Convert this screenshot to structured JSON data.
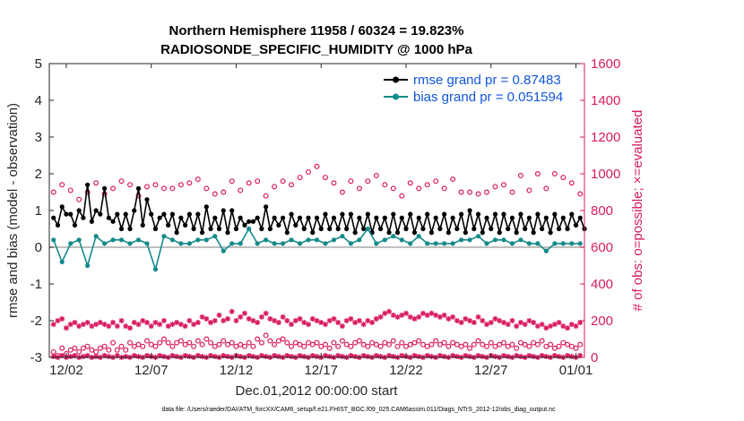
{
  "chart_data": {
    "type": "line",
    "title": "Northern Hemisphere 11958 / 60324 = 19.823%",
    "subtitle": "RADIOSONDE_SPECIFIC_HUMIDITY @ 1000 hPa",
    "xlabel": "Dec.01,2012 00:00:00 start",
    "ylabel": "rmse and bias (model - observation)",
    "y2label": "# of obs: o=possible; ×=evaluated",
    "footnote": "data file: /Users/raeder/DAI/ATM_forcXX/CAM6_setup/f.e21.FHIST_BGC.f09_025.CAM6assim.011/Diags_NTrS_2012-12/obs_diag_output.nc",
    "xlim": [
      0,
      31.5
    ],
    "ylim": [
      -3,
      5
    ],
    "y2lim": [
      0,
      1600
    ],
    "x_ticks": [
      {
        "x": 1,
        "label": "12/02"
      },
      {
        "x": 6,
        "label": "12/07"
      },
      {
        "x": 11,
        "label": "12/12"
      },
      {
        "x": 16,
        "label": "12/17"
      },
      {
        "x": 21,
        "label": "12/22"
      },
      {
        "x": 26,
        "label": "12/27"
      },
      {
        "x": 31,
        "label": "01/01"
      }
    ],
    "y_ticks": [
      -3,
      -2,
      -1,
      0,
      1,
      2,
      3,
      4,
      5
    ],
    "y2_ticks": [
      0,
      200,
      400,
      600,
      800,
      1000,
      1200,
      1400,
      1600
    ],
    "grid": false,
    "legend_position": "top-right",
    "colors": {
      "rmse": "#000000",
      "bias": "#148a8a",
      "obs": "#d81b60",
      "zero_line": "#aaaaaa"
    },
    "series": [
      {
        "name": "rmse grand pr = 0.87483",
        "axis": "left",
        "color": "#000000",
        "start": 0.25,
        "step": 0.25,
        "values": [
          0.8,
          0.6,
          1.1,
          0.9,
          0.9,
          0.6,
          1.0,
          0.8,
          1.7,
          0.7,
          1.0,
          0.9,
          1.6,
          0.8,
          0.7,
          0.9,
          0.5,
          0.9,
          0.5,
          1.0,
          1.6,
          0.6,
          1.3,
          0.9,
          0.5,
          0.8,
          0.9,
          0.6,
          0.9,
          0.4,
          0.8,
          0.6,
          0.9,
          0.5,
          0.9,
          0.4,
          1.1,
          0.5,
          0.8,
          0.5,
          1.0,
          0.4,
          1.0,
          0.5,
          0.8,
          0.6,
          0.7,
          0.7,
          0.8,
          0.5,
          1.1,
          0.5,
          0.8,
          0.6,
          0.8,
          0.4,
          0.9,
          0.6,
          0.8,
          0.5,
          0.8,
          0.4,
          0.8,
          0.5,
          0.9,
          0.5,
          0.8,
          0.5,
          0.9,
          0.5,
          0.9,
          0.4,
          0.8,
          0.5,
          0.9,
          0.4,
          0.8,
          0.5,
          0.8,
          0.4,
          0.9,
          0.4,
          0.8,
          0.5,
          0.9,
          0.4,
          0.8,
          0.5,
          0.9,
          0.4,
          0.8,
          0.5,
          0.9,
          0.4,
          0.8,
          0.5,
          0.9,
          0.4,
          1.0,
          0.5,
          0.9,
          0.4,
          0.8,
          0.5,
          0.9,
          0.4,
          0.9,
          0.5,
          0.8,
          0.4,
          0.9,
          0.5,
          0.8,
          0.4,
          0.9,
          0.5,
          0.8,
          0.4,
          0.9,
          0.5,
          0.8,
          0.5,
          0.9,
          0.6,
          0.8,
          0.5,
          0.7,
          0.6,
          0.7,
          0.6,
          0.8,
          0.5,
          0.9,
          0.4,
          1.1,
          0.5,
          0.8,
          0.4,
          0.9,
          0.5,
          0.8,
          0.4,
          0.7,
          0.5,
          0.8,
          0.5,
          0.9,
          0.5,
          0.8,
          0.5,
          0.9,
          0.4,
          0.8,
          0.5,
          0.8,
          0.4,
          0.9,
          0.5,
          0.7,
          0.4,
          0.8,
          0.5,
          0.8,
          0.4,
          0.9,
          0.5,
          0.8,
          0.3,
          1.1,
          0.4,
          0.8,
          0.6,
          0.7,
          0.7,
          0.6,
          0.5,
          0.6,
          0.4,
          0.8,
          0.5,
          0.9,
          0.4,
          0.8,
          0.5,
          0.9,
          0.4,
          0.8,
          0.6,
          0.7,
          0.5,
          0.9,
          0.4,
          0.8,
          0.5,
          0.8,
          0.4,
          0.6,
          0.5,
          0.8,
          0.4,
          0.8,
          0.5,
          0.8,
          0.4,
          0.7,
          0.5,
          0.8,
          0.5,
          0.9,
          0.4,
          0.8,
          0.5,
          0.9,
          0.4,
          0.8,
          0.5,
          0.8,
          0.4,
          0.8,
          0.5,
          0.9,
          0.4,
          0.8,
          0.5,
          0.8,
          0.4,
          0.8,
          0.5,
          0.8,
          0.4,
          0.9,
          0.5,
          0.8,
          0.5,
          0.8,
          0.5,
          0.9,
          0.4,
          0.8,
          0.5,
          0.9,
          0.5,
          0.7,
          0.5,
          0.8,
          0.6
        ]
      },
      {
        "name": "bias grand pr = 0.051594",
        "axis": "left",
        "color": "#148a8a",
        "start": 0.25,
        "step": 0.5,
        "values": [
          0.2,
          -0.4,
          0.1,
          0.2,
          -0.5,
          0.3,
          0.1,
          0.2,
          0.2,
          0.1,
          0.2,
          0.1,
          -0.6,
          0.3,
          0.2,
          0.1,
          0.1,
          0.2,
          0.2,
          0.3,
          -0.1,
          0.1,
          0.1,
          0.5,
          0.1,
          0.2,
          0.1,
          0.1,
          0.2,
          0.1,
          0.2,
          0.2,
          0.1,
          0.2,
          0.3,
          0.1,
          0.2,
          0.5,
          0.1,
          0.2,
          0.3,
          0.2,
          0.1,
          0.3,
          0.1,
          0.1,
          0.1,
          0.1,
          0.2,
          0.2,
          0.3,
          0.1,
          0.2,
          0.2,
          0.1,
          0.2,
          0.1,
          0.1,
          -0.1,
          0.1,
          0.1,
          0.1,
          0.1,
          0.1,
          -0.1,
          0.1,
          0.2,
          0.1,
          0.2,
          0.1,
          0.2,
          0.1,
          0.2,
          -0.1,
          0.1,
          0.1,
          0.1,
          0.2,
          0.1,
          0.2,
          0.3,
          0.1,
          0.2,
          0.1,
          0.3,
          -0.2,
          0.1,
          0.2,
          0.1,
          0.1,
          -0.1,
          0.1,
          0.1,
          0.1,
          0.1,
          0.1,
          0.2,
          0.3,
          0.1,
          0.2,
          0.1,
          0.3,
          0.1,
          0.2,
          0.1,
          0.2,
          0.1,
          0.2,
          -0.1,
          0.1,
          0.2,
          0.2,
          0.1,
          0.2,
          0.1,
          0.2,
          0.1,
          0.2,
          0.1,
          0.1,
          0.3,
          0.1,
          -0.1,
          -0.2
        ]
      },
      {
        "name": "possible",
        "axis": "right",
        "color": "#d81b60",
        "marker": "circle",
        "start": 0.25,
        "step": 0.5,
        "values": [
          900,
          940,
          910,
          860,
          900,
          950,
          890,
          920,
          960,
          940,
          880,
          930,
          940,
          920,
          920,
          940,
          950,
          970,
          920,
          890,
          900,
          960,
          910,
          950,
          960,
          880,
          930,
          960,
          940,
          980,
          1010,
          1040,
          980,
          950,
          900,
          960,
          920,
          960,
          990,
          940,
          920,
          880,
          950,
          920,
          940,
          960,
          920,
          970,
          900,
          900,
          890,
          900,
          930,
          940,
          900,
          990,
          910,
          1000,
          920,
          1000,
          980,
          950,
          890,
          930,
          920,
          1010,
          960,
          980,
          920,
          930,
          940,
          940,
          950,
          920,
          890,
          950,
          910,
          900,
          950,
          930,
          890,
          870,
          960,
          950,
          920,
          870,
          890,
          830,
          940,
          990,
          960,
          930,
          890,
          900,
          850,
          860,
          830,
          850
        ]
      },
      {
        "name": "possible (low)",
        "axis": "right",
        "color": "#d81b60",
        "marker": "circle",
        "start": 0.25,
        "step": 0.25,
        "values": [
          30,
          10,
          50,
          20,
          40,
          50,
          30,
          50,
          60,
          40,
          30,
          50,
          60,
          40,
          80,
          40,
          60,
          40,
          80,
          60,
          70,
          60,
          90,
          70,
          60,
          80,
          100,
          80,
          60,
          80,
          90,
          70,
          80,
          60,
          90,
          70,
          100,
          80,
          60,
          70,
          90,
          70,
          80,
          60,
          70,
          60,
          80,
          60,
          100,
          80,
          120,
          90,
          70,
          90,
          100,
          80,
          60,
          80,
          70,
          60,
          80,
          70,
          80,
          60,
          70,
          50,
          80,
          60,
          90,
          70,
          60,
          80,
          90,
          70,
          60,
          80,
          70,
          60,
          80,
          70,
          90,
          60,
          80,
          60,
          70,
          80,
          90,
          70,
          60,
          70,
          90,
          70,
          80,
          60,
          80,
          70,
          60,
          70,
          50,
          70,
          90,
          70,
          60,
          80,
          60,
          70,
          80,
          60,
          70,
          50,
          80,
          70,
          60,
          80,
          70,
          90,
          60,
          70,
          50,
          60,
          80,
          70,
          60,
          50,
          70,
          60,
          80,
          50,
          70,
          60,
          40,
          60,
          70,
          50,
          60,
          40,
          50,
          60,
          40,
          50,
          30,
          40,
          60,
          50,
          40,
          50,
          40,
          30,
          40,
          20,
          30,
          40,
          30,
          20
        ]
      },
      {
        "name": "evaluated",
        "axis": "right",
        "color": "#d81b60",
        "marker": "asterisk",
        "start": 0.25,
        "step": 0.25,
        "values": [
          180,
          200,
          210,
          160,
          180,
          190,
          170,
          180,
          190,
          170,
          180,
          190,
          180,
          170,
          190,
          170,
          200,
          170,
          160,
          190,
          180,
          200,
          190,
          170,
          190,
          180,
          200,
          170,
          180,
          190,
          180,
          170,
          200,
          180,
          190,
          220,
          210,
          190,
          200,
          230,
          200,
          210,
          250,
          200,
          220,
          240,
          210,
          200,
          190,
          220,
          240,
          210,
          200,
          190,
          220,
          200,
          180,
          200,
          210,
          190,
          180,
          210,
          200,
          190,
          180,
          200,
          210,
          190,
          170,
          200,
          210,
          190,
          200,
          180,
          200,
          190,
          210,
          220,
          240,
          250,
          230,
          220,
          230,
          240,
          220,
          210,
          220,
          240,
          230,
          240,
          230,
          220,
          230,
          210,
          220,
          200,
          190,
          210,
          200,
          190,
          220,
          200,
          180,
          190,
          210,
          200,
          190,
          180,
          200,
          170,
          190,
          180,
          200,
          190,
          170,
          180,
          160,
          170,
          180,
          190,
          170,
          160,
          180,
          170,
          190,
          160,
          170,
          180,
          160,
          170,
          150,
          160,
          180,
          170,
          160,
          170,
          150,
          160,
          170,
          150,
          160,
          180,
          170,
          150
        ]
      },
      {
        "name": "evaluated (low)",
        "axis": "right",
        "color": "#d81b60",
        "marker": "asterisk",
        "start": 0.25,
        "step": 0.25,
        "values": [
          5,
          0,
          10,
          0,
          5,
          10,
          0,
          5,
          10,
          0,
          5,
          0,
          10,
          5,
          0,
          10,
          0,
          5,
          0,
          10,
          5,
          0,
          10,
          5,
          0,
          10,
          5,
          0,
          10,
          5,
          0,
          10,
          5,
          0,
          10,
          5,
          0,
          10,
          5,
          0,
          10,
          5,
          0,
          10,
          5,
          0,
          10,
          5,
          0,
          10,
          5,
          0,
          10,
          5,
          0,
          10,
          5,
          0,
          10,
          5,
          0,
          10,
          5,
          0,
          10,
          5,
          0,
          10,
          5,
          0,
          10,
          5,
          0,
          10,
          5,
          0,
          10,
          5,
          0,
          10,
          5,
          0,
          10,
          5,
          0,
          10,
          5,
          0,
          10,
          5,
          0,
          10,
          5,
          0,
          10,
          5,
          0,
          10,
          5,
          0,
          10,
          5,
          0,
          10,
          5,
          0,
          10,
          5,
          0,
          10,
          5,
          0,
          10,
          5,
          0,
          10,
          5,
          0,
          10,
          5,
          0,
          10,
          5,
          0,
          10,
          5,
          0,
          10,
          5,
          0,
          10,
          5,
          0,
          10,
          5,
          0,
          10,
          5,
          0,
          10,
          5,
          0,
          10,
          5
        ]
      }
    ]
  }
}
